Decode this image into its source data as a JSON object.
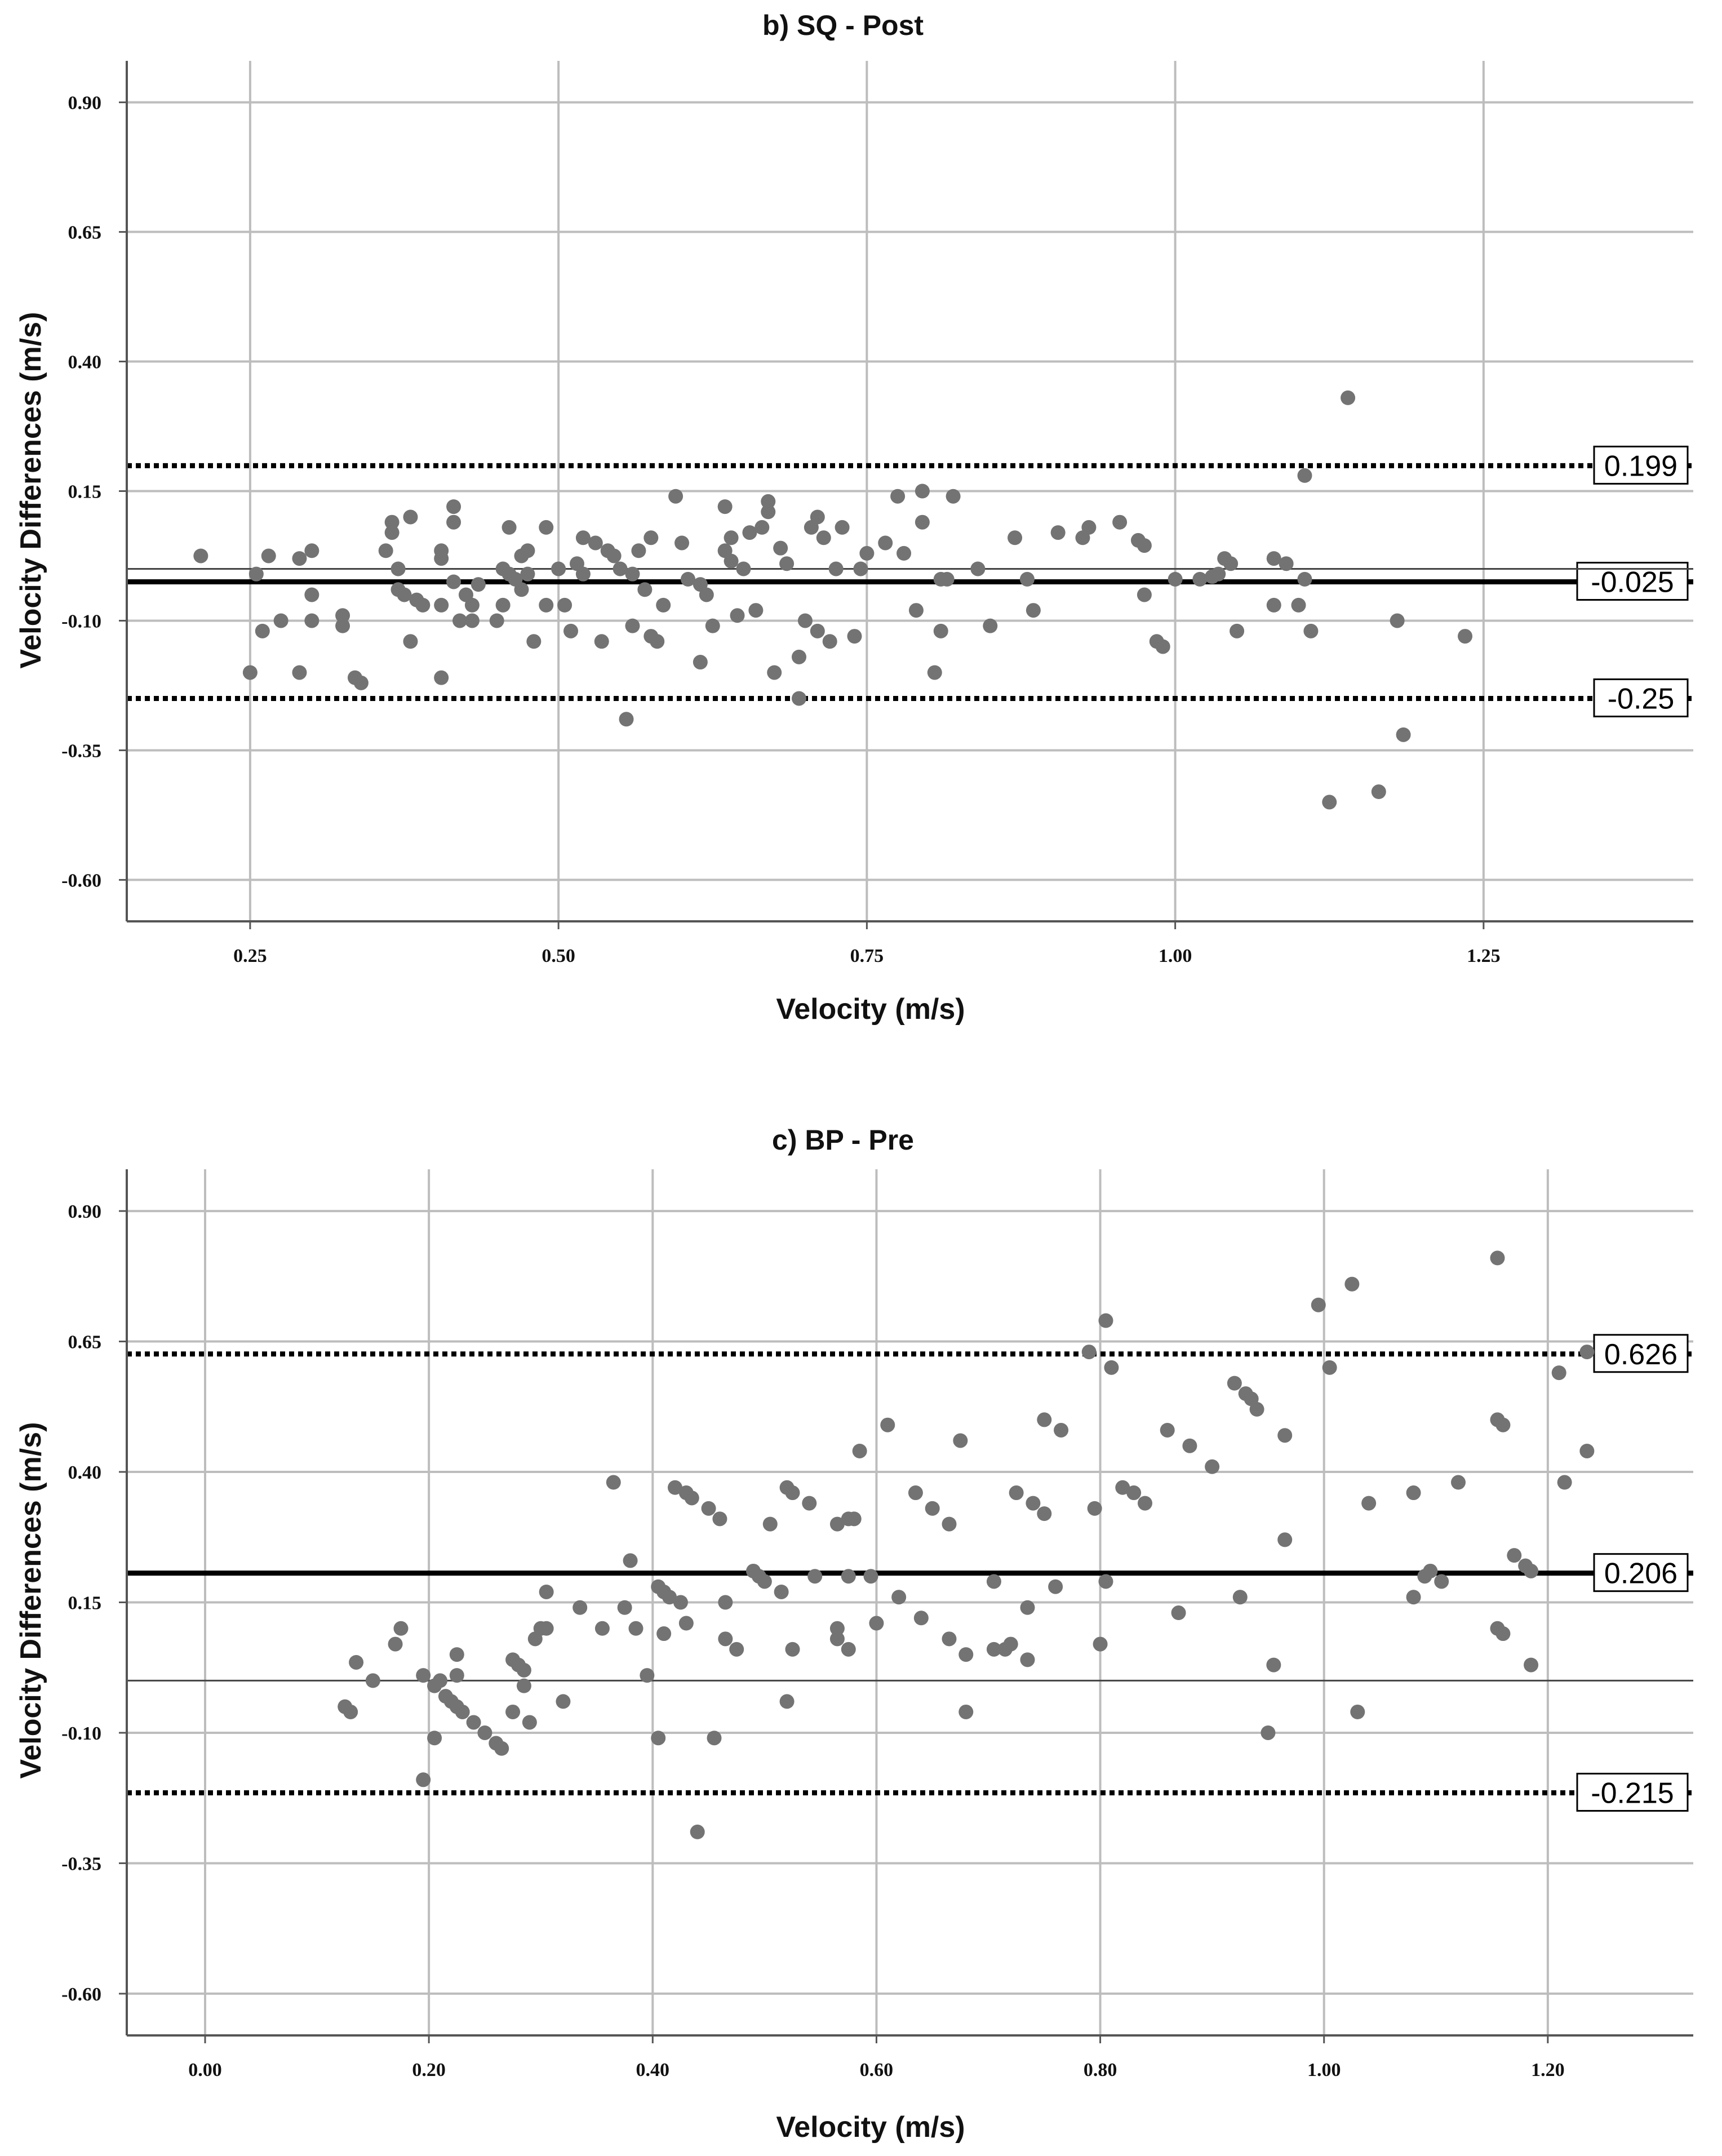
{
  "chart_data": [
    {
      "type": "scatter",
      "title": "b) SQ - Post",
      "xlabel": "Velocity (m/s)",
      "ylabel": "Velocity Differences (m/s)",
      "xlim": [
        0.15,
        1.42
      ],
      "ylim": [
        -0.68,
        0.98
      ],
      "x_ticks": [
        "0.25",
        "0.50",
        "0.75",
        "1.00",
        "1.25"
      ],
      "y_ticks": [
        "0.90",
        "0.65",
        "0.40",
        "0.15",
        "-0.10",
        "-0.35",
        "-0.60"
      ],
      "grid": true,
      "reference_lines": [
        {
          "y": 0.199,
          "label": "0.199",
          "style": "dotted"
        },
        {
          "y": -0.025,
          "label": "-0.025",
          "style": "solid-thick"
        },
        {
          "y": 0.0,
          "label": "",
          "style": "solid-thin"
        },
        {
          "y": -0.25,
          "label": "-0.25",
          "style": "dotted"
        }
      ],
      "points": [
        [
          0.21,
          0.025
        ],
        [
          0.255,
          -0.01
        ],
        [
          0.26,
          -0.12
        ],
        [
          0.265,
          0.025
        ],
        [
          0.25,
          -0.2
        ],
        [
          0.275,
          -0.1
        ],
        [
          0.29,
          0.02
        ],
        [
          0.29,
          -0.2
        ],
        [
          0.3,
          0.035
        ],
        [
          0.3,
          -0.05
        ],
        [
          0.3,
          -0.1
        ],
        [
          0.325,
          -0.09
        ],
        [
          0.325,
          -0.11
        ],
        [
          0.335,
          -0.21
        ],
        [
          0.34,
          -0.22
        ],
        [
          0.36,
          0.035
        ],
        [
          0.365,
          0.09
        ],
        [
          0.365,
          0.07
        ],
        [
          0.37,
          -0.04
        ],
        [
          0.37,
          0.0
        ],
        [
          0.375,
          -0.05
        ],
        [
          0.38,
          0.1
        ],
        [
          0.38,
          -0.14
        ],
        [
          0.385,
          -0.06
        ],
        [
          0.39,
          -0.07
        ],
        [
          0.405,
          0.035
        ],
        [
          0.405,
          0.02
        ],
        [
          0.405,
          -0.07
        ],
        [
          0.405,
          -0.21
        ],
        [
          0.415,
          0.09
        ],
        [
          0.415,
          -0.025
        ],
        [
          0.415,
          0.12
        ],
        [
          0.42,
          -0.1
        ],
        [
          0.425,
          -0.05
        ],
        [
          0.43,
          -0.07
        ],
        [
          0.43,
          -0.1
        ],
        [
          0.435,
          -0.03
        ],
        [
          0.45,
          -0.1
        ],
        [
          0.455,
          0.0
        ],
        [
          0.455,
          -0.07
        ],
        [
          0.46,
          0.08
        ],
        [
          0.46,
          -0.01
        ],
        [
          0.465,
          -0.02
        ],
        [
          0.47,
          0.025
        ],
        [
          0.47,
          -0.04
        ],
        [
          0.475,
          0.035
        ],
        [
          0.475,
          -0.01
        ],
        [
          0.48,
          -0.14
        ],
        [
          0.49,
          0.08
        ],
        [
          0.49,
          -0.07
        ],
        [
          0.5,
          0.0
        ],
        [
          0.505,
          -0.07
        ],
        [
          0.51,
          -0.12
        ],
        [
          0.515,
          0.01
        ],
        [
          0.52,
          0.06
        ],
        [
          0.52,
          -0.01
        ],
        [
          0.53,
          0.05
        ],
        [
          0.535,
          -0.14
        ],
        [
          0.54,
          0.035
        ],
        [
          0.545,
          0.025
        ],
        [
          0.55,
          0.0
        ],
        [
          0.555,
          -0.29
        ],
        [
          0.56,
          -0.11
        ],
        [
          0.56,
          -0.01
        ],
        [
          0.565,
          0.035
        ],
        [
          0.57,
          -0.04
        ],
        [
          0.575,
          0.06
        ],
        [
          0.575,
          -0.13
        ],
        [
          0.58,
          -0.14
        ],
        [
          0.585,
          -0.07
        ],
        [
          0.595,
          0.14
        ],
        [
          0.6,
          0.05
        ],
        [
          0.605,
          -0.02
        ],
        [
          0.615,
          -0.18
        ],
        [
          0.615,
          -0.03
        ],
        [
          0.62,
          -0.05
        ],
        [
          0.625,
          -0.11
        ],
        [
          0.635,
          0.12
        ],
        [
          0.635,
          0.035
        ],
        [
          0.64,
          0.015
        ],
        [
          0.64,
          0.06
        ],
        [
          0.645,
          -0.09
        ],
        [
          0.65,
          0.0
        ],
        [
          0.655,
          0.07
        ],
        [
          0.66,
          -0.08
        ],
        [
          0.665,
          0.08
        ],
        [
          0.67,
          0.13
        ],
        [
          0.67,
          0.11
        ],
        [
          0.675,
          -0.2
        ],
        [
          0.68,
          0.04
        ],
        [
          0.685,
          0.01
        ],
        [
          0.695,
          -0.25
        ],
        [
          0.695,
          -0.17
        ],
        [
          0.7,
          -0.1
        ],
        [
          0.705,
          0.08
        ],
        [
          0.71,
          0.1
        ],
        [
          0.71,
          -0.12
        ],
        [
          0.715,
          0.06
        ],
        [
          0.72,
          -0.14
        ],
        [
          0.725,
          0.0
        ],
        [
          0.73,
          0.08
        ],
        [
          0.74,
          -0.13
        ],
        [
          0.745,
          0.0
        ],
        [
          0.75,
          0.03
        ],
        [
          0.765,
          0.05
        ],
        [
          0.775,
          0.14
        ],
        [
          0.78,
          0.03
        ],
        [
          0.79,
          -0.08
        ],
        [
          0.795,
          0.15
        ],
        [
          0.795,
          0.09
        ],
        [
          0.805,
          -0.2
        ],
        [
          0.81,
          -0.02
        ],
        [
          0.81,
          -0.12
        ],
        [
          0.815,
          -0.02
        ],
        [
          0.82,
          0.14
        ],
        [
          0.84,
          0.0
        ],
        [
          0.85,
          -0.11
        ],
        [
          0.87,
          0.06
        ],
        [
          0.88,
          -0.02
        ],
        [
          0.885,
          -0.08
        ],
        [
          0.905,
          0.07
        ],
        [
          0.925,
          0.06
        ],
        [
          0.93,
          0.08
        ],
        [
          0.955,
          0.09
        ],
        [
          0.97,
          0.055
        ],
        [
          0.975,
          0.045
        ],
        [
          0.975,
          -0.05
        ],
        [
          0.985,
          -0.14
        ],
        [
          0.99,
          -0.15
        ],
        [
          1.0,
          -0.02
        ],
        [
          1.02,
          -0.02
        ],
        [
          1.03,
          -0.015
        ],
        [
          1.035,
          -0.01
        ],
        [
          1.04,
          0.02
        ],
        [
          1.045,
          0.01
        ],
        [
          1.05,
          -0.12
        ],
        [
          1.08,
          0.02
        ],
        [
          1.08,
          -0.07
        ],
        [
          1.09,
          0.01
        ],
        [
          1.1,
          -0.07
        ],
        [
          1.105,
          0.18
        ],
        [
          1.105,
          -0.02
        ],
        [
          1.11,
          -0.12
        ],
        [
          1.125,
          -0.45
        ],
        [
          1.14,
          0.33
        ],
        [
          1.165,
          -0.43
        ],
        [
          1.18,
          -0.1
        ],
        [
          1.185,
          -0.32
        ],
        [
          1.235,
          -0.13
        ]
      ]
    },
    {
      "type": "scatter",
      "title": "c) BP - Pre",
      "xlabel": "Velocity (m/s)",
      "ylabel": "Velocity Differences (m/s)",
      "xlim": [
        -0.07,
        1.33
      ],
      "ylim": [
        -0.68,
        0.98
      ],
      "x_ticks": [
        "0.00",
        "0.20",
        "0.40",
        "0.60",
        "0.80",
        "1.00",
        "1.20"
      ],
      "y_ticks": [
        "0.90",
        "0.65",
        "0.40",
        "0.15",
        "-0.10",
        "-0.35",
        "-0.60"
      ],
      "grid": true,
      "reference_lines": [
        {
          "y": 0.626,
          "label": "0.626",
          "style": "dotted"
        },
        {
          "y": 0.206,
          "label": "0.206",
          "style": "solid-thick"
        },
        {
          "y": 0.0,
          "label": "",
          "style": "solid-thin"
        },
        {
          "y": -0.215,
          "label": "-0.215",
          "style": "dotted"
        }
      ],
      "points": [
        [
          0.125,
          -0.05
        ],
        [
          0.13,
          -0.06
        ],
        [
          0.135,
          0.035
        ],
        [
          0.15,
          0.0
        ],
        [
          0.17,
          0.07
        ],
        [
          0.175,
          0.1
        ],
        [
          0.195,
          -0.19
        ],
        [
          0.195,
          0.01
        ],
        [
          0.205,
          -0.11
        ],
        [
          0.205,
          -0.01
        ],
        [
          0.21,
          0.0
        ],
        [
          0.215,
          -0.03
        ],
        [
          0.22,
          -0.04
        ],
        [
          0.225,
          -0.05
        ],
        [
          0.225,
          0.01
        ],
        [
          0.225,
          0.05
        ],
        [
          0.23,
          -0.06
        ],
        [
          0.24,
          -0.08
        ],
        [
          0.25,
          -0.1
        ],
        [
          0.26,
          -0.12
        ],
        [
          0.265,
          -0.13
        ],
        [
          0.275,
          0.04
        ],
        [
          0.275,
          -0.06
        ],
        [
          0.28,
          0.03
        ],
        [
          0.285,
          -0.01
        ],
        [
          0.285,
          0.02
        ],
        [
          0.29,
          -0.08
        ],
        [
          0.295,
          0.08
        ],
        [
          0.3,
          0.1
        ],
        [
          0.305,
          0.1
        ],
        [
          0.305,
          0.17
        ],
        [
          0.32,
          -0.04
        ],
        [
          0.335,
          0.14
        ],
        [
          0.355,
          0.1
        ],
        [
          0.365,
          0.38
        ],
        [
          0.375,
          0.14
        ],
        [
          0.38,
          0.23
        ],
        [
          0.385,
          0.1
        ],
        [
          0.395,
          0.01
        ],
        [
          0.405,
          -0.11
        ],
        [
          0.405,
          0.18
        ],
        [
          0.41,
          0.17
        ],
        [
          0.41,
          0.09
        ],
        [
          0.415,
          0.16
        ],
        [
          0.42,
          0.37
        ],
        [
          0.425,
          0.15
        ],
        [
          0.43,
          0.36
        ],
        [
          0.43,
          0.11
        ],
        [
          0.435,
          0.35
        ],
        [
          0.44,
          -0.29
        ],
        [
          0.45,
          0.33
        ],
        [
          0.455,
          -0.11
        ],
        [
          0.46,
          0.31
        ],
        [
          0.465,
          0.15
        ],
        [
          0.465,
          0.08
        ],
        [
          0.475,
          0.06
        ],
        [
          0.49,
          0.21
        ],
        [
          0.495,
          0.2
        ],
        [
          0.5,
          0.19
        ],
        [
          0.505,
          0.3
        ],
        [
          0.515,
          0.17
        ],
        [
          0.52,
          0.37
        ],
        [
          0.52,
          -0.04
        ],
        [
          0.525,
          0.36
        ],
        [
          0.525,
          0.06
        ],
        [
          0.54,
          0.34
        ],
        [
          0.545,
          0.2
        ],
        [
          0.565,
          0.3
        ],
        [
          0.565,
          0.1
        ],
        [
          0.565,
          0.08
        ],
        [
          0.575,
          0.31
        ],
        [
          0.575,
          0.2
        ],
        [
          0.575,
          0.06
        ],
        [
          0.58,
          0.31
        ],
        [
          0.585,
          0.44
        ],
        [
          0.595,
          0.2
        ],
        [
          0.6,
          0.11
        ],
        [
          0.61,
          0.49
        ],
        [
          0.62,
          0.16
        ],
        [
          0.635,
          0.36
        ],
        [
          0.64,
          0.12
        ],
        [
          0.65,
          0.33
        ],
        [
          0.665,
          0.08
        ],
        [
          0.665,
          0.3
        ],
        [
          0.675,
          0.46
        ],
        [
          0.68,
          0.05
        ],
        [
          0.68,
          -0.06
        ],
        [
          0.705,
          0.06
        ],
        [
          0.705,
          0.19
        ],
        [
          0.715,
          0.06
        ],
        [
          0.72,
          0.07
        ],
        [
          0.725,
          0.36
        ],
        [
          0.735,
          0.14
        ],
        [
          0.735,
          0.04
        ],
        [
          0.74,
          0.34
        ],
        [
          0.75,
          0.5
        ],
        [
          0.75,
          0.32
        ],
        [
          0.76,
          0.18
        ],
        [
          0.765,
          0.48
        ],
        [
          0.79,
          0.63
        ],
        [
          0.795,
          0.33
        ],
        [
          0.8,
          0.07
        ],
        [
          0.805,
          0.69
        ],
        [
          0.805,
          0.19
        ],
        [
          0.81,
          0.6
        ],
        [
          0.82,
          0.37
        ],
        [
          0.83,
          0.36
        ],
        [
          0.84,
          0.34
        ],
        [
          0.86,
          0.48
        ],
        [
          0.87,
          0.13
        ],
        [
          0.88,
          0.45
        ],
        [
          0.9,
          0.41
        ],
        [
          0.92,
          0.57
        ],
        [
          0.925,
          0.16
        ],
        [
          0.93,
          0.55
        ],
        [
          0.935,
          0.54
        ],
        [
          0.94,
          0.52
        ],
        [
          0.95,
          -0.1
        ],
        [
          0.955,
          0.03
        ],
        [
          0.965,
          0.47
        ],
        [
          0.965,
          0.27
        ],
        [
          0.995,
          0.72
        ],
        [
          1.005,
          0.6
        ],
        [
          1.025,
          0.76
        ],
        [
          1.03,
          -0.06
        ],
        [
          1.04,
          0.34
        ],
        [
          1.08,
          0.16
        ],
        [
          1.08,
          0.36
        ],
        [
          1.09,
          0.2
        ],
        [
          1.095,
          0.21
        ],
        [
          1.105,
          0.19
        ],
        [
          1.12,
          0.38
        ],
        [
          1.155,
          0.5
        ],
        [
          1.155,
          0.1
        ],
        [
          1.155,
          0.81
        ],
        [
          1.16,
          0.49
        ],
        [
          1.16,
          0.09
        ],
        [
          1.17,
          0.24
        ],
        [
          1.18,
          0.22
        ],
        [
          1.185,
          0.03
        ],
        [
          1.185,
          0.21
        ],
        [
          1.21,
          0.59
        ],
        [
          1.215,
          0.38
        ],
        [
          1.235,
          0.44
        ],
        [
          1.235,
          0.63
        ]
      ]
    }
  ]
}
